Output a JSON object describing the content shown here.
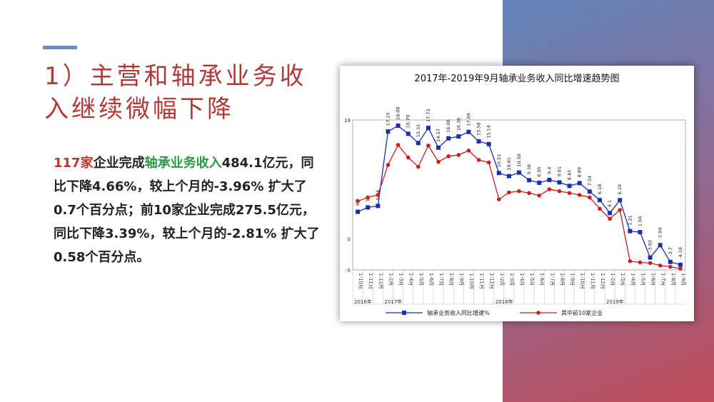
{
  "slide": {
    "title_line1": "1）主营和轴承业务收",
    "title_line2": "入继续微幅下降",
    "para": {
      "seg1": "117家",
      "seg2": "企业完成",
      "seg3": "轴承业务收入",
      "seg4": "484.1亿元，同比下降4.66%，较上个月的-3.96% 扩大了0.7个百分点；前10家企业完成275.5亿元，同比下降3.39%，较上个月的-2.81% 扩大了0.58个百分点。"
    },
    "colors": {
      "title": "#b03a3a",
      "highlight_red": "#c0332f",
      "highlight_green": "#2a9a45",
      "accent": "#6b8cc0"
    }
  },
  "chart_data": {
    "type": "line",
    "title": "2017年-2019年9月轴承业务收入同比增速趋势图",
    "x": [
      "2016-10",
      "2016-11",
      "2016-12",
      "2017-01",
      "2017-03",
      "2017-04",
      "2017-05",
      "2017-06",
      "2017-07",
      "2017-08",
      "2017-09",
      "2017-10",
      "2017-11",
      "2017-12",
      "2018-02",
      "2018-03",
      "2018-04",
      "2018-05",
      "2018-06",
      "2018-07",
      "2018-08",
      "2018-09",
      "2018-10",
      "2018-11",
      "2018-12",
      "2019-02",
      "2019-03",
      "2019-04",
      "2019-05",
      "2019-06",
      "2019-07",
      "2019-08",
      "2019-09"
    ],
    "x_tick_labels": [
      "1-10月",
      "1-11月",
      "1-12月",
      "1-2月",
      "1-3月",
      "1-4月",
      "1-5月",
      "1-6月",
      "1-7月",
      "1-8月",
      "1-9月",
      "1-10月",
      "1-11月",
      "1-12月",
      "1-2月",
      "1-3月",
      "1-4月",
      "1-5月",
      "1-6月",
      "1-7月",
      "1-8月",
      "1-9月",
      "1-10月",
      "1-11月",
      "1-12月",
      "1-2月",
      "1-3月",
      "1-4月",
      "1-5月",
      "1-6月",
      "1-7月",
      "1-8月",
      "1-9月"
    ],
    "year_labels": [
      "2016年",
      "2017年",
      "2018年",
      "2019年"
    ],
    "y_tick_labels": [
      "19",
      "0",
      "-5"
    ],
    "ylim": [
      -5,
      19
    ],
    "series": [
      {
        "name": "轴承业务收入同比增速%",
        "color": "#1a2fb0",
        "marker": "square",
        "values": [
          4.3,
          5,
          5.24,
          17.15,
          18.08,
          16.79,
          15.31,
          17.73,
          14.57,
          16.06,
          16.36,
          17.09,
          15.58,
          15.14,
          10.51,
          10.01,
          10.58,
          9.36,
          8.95,
          9.4,
          9.01,
          8.45,
          8.89,
          7.54,
          6.18,
          4.1,
          6.16,
          1.21,
          1.04,
          -3.02,
          -1.04,
          -3.72,
          -4.18
        ],
        "labels": [
          "4.3",
          "5",
          "5.24",
          "17.15",
          "18.08",
          "16.79",
          "15.31",
          "17.73",
          "14.57",
          "16.06",
          "16.36",
          "17.09",
          "15.58",
          "15.14",
          "10.51",
          "10.01",
          "10.58",
          "9.36",
          "8.95",
          "9.4",
          "9.01",
          "8.45",
          "8.89",
          "7.54",
          "6.18",
          "4.1",
          "6.16",
          "1.21",
          "1.04",
          "-3.02",
          "-1.04",
          "-3.7",
          "-4.18"
        ]
      },
      {
        "name": "其中前10家企业",
        "color": "#cc1e1e",
        "marker": "circle",
        "values": [
          6.0,
          6.6,
          7.0,
          11.8,
          15.0,
          13.0,
          11.5,
          14.9,
          12.3,
          13.2,
          13.4,
          14.1,
          12.6,
          12.2,
          6.3,
          7.4,
          7.6,
          7.3,
          6.9,
          7.9,
          7.6,
          7.3,
          7.0,
          6.6,
          4.8,
          3.2,
          4.6,
          -3.6,
          -3.8,
          -3.9,
          -4.3,
          -4.5,
          -4.8
        ]
      }
    ]
  }
}
